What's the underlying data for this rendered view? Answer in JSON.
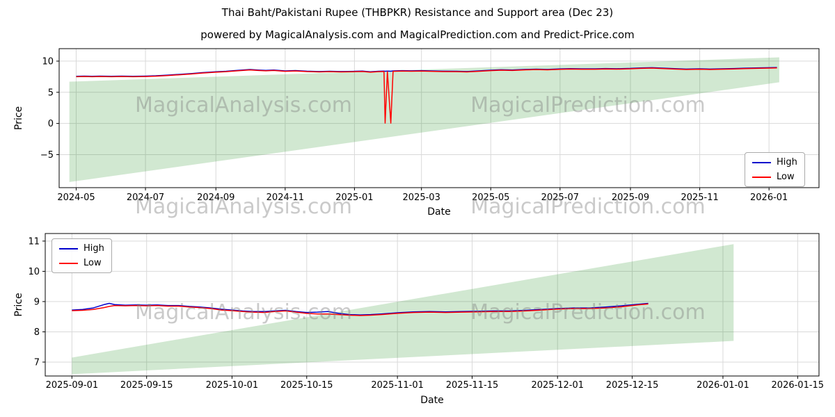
{
  "title": "Thai Baht/Pakistani Rupee (THBPKR) Resistance and Support area (Dec 23)",
  "subtitle": "powered by MagicalAnalysis.com and MagicalPrediction.com and Predict-Price.com",
  "watermarks": {
    "analysis": "MagicalAnalysis.com",
    "prediction": "MagicalPrediction.com"
  },
  "legend": {
    "high": "High",
    "low": "Low"
  },
  "colors": {
    "high": "#0000cc",
    "low": "#ff0000",
    "area": "rgba(0,128,0,0.18)",
    "grid": "#d9d9d9",
    "spine": "#000000"
  },
  "chart_data": [
    {
      "type": "line",
      "xlabel": "Date",
      "ylabel": "Price",
      "x_range": [
        "2024-04-16",
        "2026-02-14"
      ],
      "y_range": [
        -10.3,
        12
      ],
      "x_ticks": [
        {
          "v": "2024-05-01",
          "label": "2024-05"
        },
        {
          "v": "2024-07-01",
          "label": "2024-07"
        },
        {
          "v": "2024-09-01",
          "label": "2024-09"
        },
        {
          "v": "2024-11-01",
          "label": "2024-11"
        },
        {
          "v": "2025-01-01",
          "label": "2025-01"
        },
        {
          "v": "2025-03-01",
          "label": "2025-03"
        },
        {
          "v": "2025-05-01",
          "label": "2025-05"
        },
        {
          "v": "2025-07-01",
          "label": "2025-07"
        },
        {
          "v": "2025-09-01",
          "label": "2025-09"
        },
        {
          "v": "2025-11-01",
          "label": "2025-11"
        },
        {
          "v": "2026-01-01",
          "label": "2026-01"
        }
      ],
      "y_ticks": [
        {
          "v": -5,
          "label": "−5"
        },
        {
          "v": 0,
          "label": "0"
        },
        {
          "v": 5,
          "label": "5"
        },
        {
          "v": 10,
          "label": "10"
        }
      ],
      "dates": [
        "2024-05-01",
        "2024-05-08",
        "2024-05-15",
        "2024-05-22",
        "2024-06-01",
        "2024-06-10",
        "2024-06-20",
        "2024-07-01",
        "2024-07-10",
        "2024-07-20",
        "2024-08-01",
        "2024-08-10",
        "2024-08-20",
        "2024-09-01",
        "2024-09-10",
        "2024-09-20",
        "2024-10-01",
        "2024-10-08",
        "2024-10-15",
        "2024-10-22",
        "2024-11-01",
        "2024-11-10",
        "2024-11-20",
        "2024-12-01",
        "2024-12-10",
        "2024-12-20",
        "2025-01-01",
        "2025-01-08",
        "2025-01-15",
        "2025-01-22",
        "2025-01-27",
        "2025-01-28",
        "2025-01-30",
        "2025-02-02",
        "2025-02-04",
        "2025-02-12",
        "2025-02-20",
        "2025-03-01",
        "2025-03-10",
        "2025-03-20",
        "2025-04-01",
        "2025-04-10",
        "2025-04-20",
        "2025-05-01",
        "2025-05-10",
        "2025-05-20",
        "2025-06-01",
        "2025-06-10",
        "2025-06-20",
        "2025-07-01",
        "2025-07-10",
        "2025-07-20",
        "2025-08-01",
        "2025-08-10",
        "2025-08-20",
        "2025-09-01",
        "2025-09-10",
        "2025-09-20",
        "2025-10-01",
        "2025-10-10",
        "2025-10-20",
        "2025-11-01",
        "2025-11-10",
        "2025-11-20",
        "2025-12-01",
        "2025-12-10",
        "2025-12-20",
        "2026-01-01",
        "2026-01-08"
      ],
      "series": [
        {
          "key": "high",
          "name": "High",
          "values": [
            7.57,
            7.6,
            7.57,
            7.59,
            7.57,
            7.59,
            7.57,
            7.6,
            7.65,
            7.75,
            7.89,
            8.0,
            8.15,
            8.29,
            8.37,
            8.51,
            8.65,
            8.57,
            8.51,
            8.57,
            8.43,
            8.49,
            8.39,
            8.33,
            8.38,
            8.33,
            8.37,
            8.41,
            8.29,
            8.38,
            8.4,
            8.38,
            8.41,
            8.38,
            8.43,
            8.47,
            8.44,
            8.47,
            8.43,
            8.39,
            8.38,
            8.33,
            8.43,
            8.55,
            8.61,
            8.57,
            8.67,
            8.71,
            8.67,
            8.75,
            8.8,
            8.77,
            8.77,
            8.81,
            8.78,
            8.83,
            8.91,
            8.95,
            8.87,
            8.79,
            8.73,
            8.77,
            8.73,
            8.77,
            8.81,
            8.86,
            8.9,
            8.95,
            8.97
          ]
        },
        {
          "key": "low",
          "name": "Low",
          "values": [
            7.5,
            7.53,
            7.5,
            7.52,
            7.5,
            7.52,
            7.5,
            7.53,
            7.58,
            7.68,
            7.82,
            7.93,
            8.08,
            8.22,
            8.3,
            8.44,
            8.58,
            8.5,
            8.44,
            8.5,
            8.36,
            8.42,
            8.32,
            8.26,
            8.31,
            8.26,
            8.3,
            8.34,
            8.22,
            8.31,
            8.33,
            0.05,
            8.34,
            0.05,
            8.36,
            8.4,
            8.37,
            8.4,
            8.36,
            8.32,
            8.31,
            8.26,
            8.36,
            8.48,
            8.54,
            8.5,
            8.6,
            8.64,
            8.6,
            8.68,
            8.73,
            8.7,
            8.7,
            8.74,
            8.71,
            8.76,
            8.84,
            8.88,
            8.8,
            8.72,
            8.66,
            8.7,
            8.66,
            8.7,
            8.74,
            8.79,
            8.83,
            8.88,
            8.9
          ]
        }
      ],
      "support_resistance_area": {
        "dates": [
          "2024-04-25",
          "2026-01-10"
        ],
        "resistance": [
          6.7,
          10.6
        ],
        "support": [
          -9.4,
          6.6
        ]
      }
    },
    {
      "type": "line",
      "xlabel": "Date",
      "ylabel": "Price",
      "x_range": [
        "2025-08-27",
        "2026-01-19"
      ],
      "y_range": [
        6.54,
        11.25
      ],
      "x_ticks": [
        {
          "v": "2025-09-01",
          "label": "2025-09-01"
        },
        {
          "v": "2025-09-15",
          "label": "2025-09-15"
        },
        {
          "v": "2025-10-01",
          "label": "2025-10-01"
        },
        {
          "v": "2025-10-15",
          "label": "2025-10-15"
        },
        {
          "v": "2025-11-01",
          "label": "2025-11-01"
        },
        {
          "v": "2025-11-15",
          "label": "2025-11-15"
        },
        {
          "v": "2025-12-01",
          "label": "2025-12-01"
        },
        {
          "v": "2025-12-15",
          "label": "2025-12-15"
        },
        {
          "v": "2026-01-01",
          "label": "2026-01-01"
        },
        {
          "v": "2026-01-15",
          "label": "2026-01-15"
        }
      ],
      "y_ticks": [
        {
          "v": 7,
          "label": "7"
        },
        {
          "v": 8,
          "label": "8"
        },
        {
          "v": 9,
          "label": "9"
        },
        {
          "v": 10,
          "label": "10"
        },
        {
          "v": 11,
          "label": "11"
        }
      ],
      "dates": [
        "2025-09-01",
        "2025-09-03",
        "2025-09-05",
        "2025-09-07",
        "2025-09-08",
        "2025-09-09",
        "2025-09-11",
        "2025-09-13",
        "2025-09-15",
        "2025-09-17",
        "2025-09-19",
        "2025-09-21",
        "2025-09-23",
        "2025-09-25",
        "2025-09-27",
        "2025-09-29",
        "2025-10-01",
        "2025-10-03",
        "2025-10-05",
        "2025-10-07",
        "2025-10-09",
        "2025-10-11",
        "2025-10-13",
        "2025-10-15",
        "2025-10-17",
        "2025-10-19",
        "2025-10-21",
        "2025-10-23",
        "2025-10-25",
        "2025-10-27",
        "2025-10-29",
        "2025-11-01",
        "2025-11-04",
        "2025-11-07",
        "2025-11-10",
        "2025-11-13",
        "2025-11-16",
        "2025-11-19",
        "2025-11-22",
        "2025-11-25",
        "2025-11-28",
        "2025-12-01",
        "2025-12-04",
        "2025-12-07",
        "2025-12-10",
        "2025-12-13",
        "2025-12-16",
        "2025-12-18"
      ],
      "series": [
        {
          "key": "high",
          "name": "High",
          "values": [
            8.72,
            8.74,
            8.79,
            8.9,
            8.94,
            8.9,
            8.88,
            8.89,
            8.88,
            8.89,
            8.87,
            8.87,
            8.84,
            8.82,
            8.79,
            8.75,
            8.72,
            8.69,
            8.67,
            8.67,
            8.69,
            8.71,
            8.67,
            8.64,
            8.65,
            8.67,
            8.61,
            8.57,
            8.56,
            8.57,
            8.59,
            8.63,
            8.66,
            8.67,
            8.66,
            8.67,
            8.68,
            8.69,
            8.69,
            8.71,
            8.74,
            8.77,
            8.79,
            8.79,
            8.82,
            8.86,
            8.91,
            8.94
          ]
        },
        {
          "key": "low",
          "name": "Low",
          "values": [
            8.7,
            8.71,
            8.74,
            8.8,
            8.84,
            8.87,
            8.86,
            8.87,
            8.86,
            8.87,
            8.85,
            8.85,
            8.82,
            8.8,
            8.77,
            8.72,
            8.7,
            8.67,
            8.65,
            8.64,
            8.67,
            8.69,
            8.65,
            8.61,
            8.59,
            8.59,
            8.57,
            8.55,
            8.54,
            8.55,
            8.57,
            8.61,
            8.64,
            8.65,
            8.64,
            8.65,
            8.66,
            8.67,
            8.67,
            8.69,
            8.72,
            8.75,
            8.77,
            8.77,
            8.79,
            8.83,
            8.89,
            8.92
          ]
        }
      ],
      "support_resistance_area": {
        "dates": [
          "2025-09-01",
          "2026-01-03"
        ],
        "resistance": [
          7.15,
          10.9
        ],
        "support": [
          6.6,
          7.7
        ]
      }
    }
  ]
}
